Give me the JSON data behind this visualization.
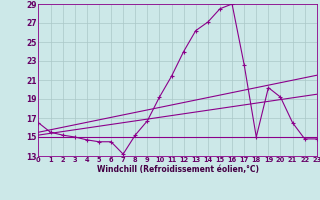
{
  "xlabel": "Windchill (Refroidissement éolien,°C)",
  "bg_color": "#cce8e8",
  "line_color": "#8b008b",
  "grid_color": "#aac8c8",
  "xlim": [
    0,
    23
  ],
  "ylim": [
    13,
    29
  ],
  "yticks": [
    13,
    15,
    17,
    19,
    21,
    23,
    25,
    27,
    29
  ],
  "xticks": [
    0,
    1,
    2,
    3,
    4,
    5,
    6,
    7,
    8,
    9,
    10,
    11,
    12,
    13,
    14,
    15,
    16,
    17,
    18,
    19,
    20,
    21,
    22,
    23
  ],
  "series1_x": [
    0,
    1,
    2,
    3,
    4,
    5,
    6,
    7,
    8,
    9,
    10,
    11,
    12,
    13,
    14,
    15,
    16,
    17,
    18,
    19,
    20,
    21,
    22,
    23
  ],
  "series1_y": [
    16.5,
    15.5,
    15.2,
    15.0,
    14.7,
    14.5,
    14.5,
    13.2,
    15.2,
    16.7,
    19.2,
    21.4,
    24.0,
    26.2,
    27.1,
    28.5,
    29.0,
    22.6,
    15.0,
    20.2,
    19.2,
    16.5,
    14.8,
    14.8
  ],
  "line2_x": [
    0,
    23
  ],
  "line2_y": [
    15.0,
    15.0
  ],
  "line3_x": [
    0,
    23
  ],
  "line3_y": [
    15.2,
    19.5
  ],
  "line4_x": [
    0,
    23
  ],
  "line4_y": [
    15.5,
    21.5
  ]
}
